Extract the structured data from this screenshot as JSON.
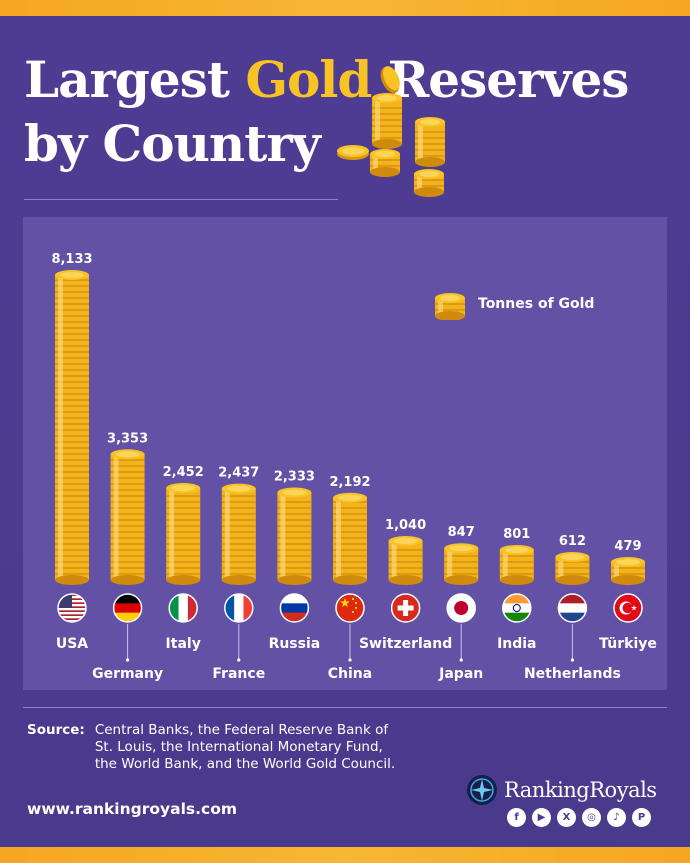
{
  "title": {
    "part1": "Largest ",
    "gold_word": "Gold",
    "part2": " Reserves",
    "line2": "by Country"
  },
  "colors": {
    "background": "#4b3a8f",
    "panel": "#6351a6",
    "accent_gold": "#f7c325",
    "stripe": "#f5a623"
  },
  "chart_data": {
    "type": "bar",
    "categories": [
      "USA",
      "Germany",
      "Italy",
      "France",
      "Russia",
      "China",
      "Switzerland",
      "Japan",
      "India",
      "Netherlands",
      "Türkiye"
    ],
    "values": [
      8133,
      3353,
      2452,
      2437,
      2333,
      2192,
      1040,
      847,
      801,
      612,
      479
    ],
    "value_labels": [
      "8,133",
      "3,353",
      "2,452",
      "2,437",
      "2,333",
      "2,192",
      "1,040",
      "847",
      "801",
      "612",
      "479"
    ],
    "flags": [
      "us-flag",
      "germany-flag",
      "italy-flag",
      "france-flag",
      "russia-flag",
      "china-flag",
      "switzerland-flag",
      "japan-flag",
      "india-flag",
      "netherlands-flag",
      "turkiye-flag"
    ],
    "ylim": [
      0,
      8133
    ],
    "legend": "Tonnes of Gold",
    "legend_position": "top-right",
    "grid": false
  },
  "legend": {
    "label": "Tonnes of Gold"
  },
  "source": {
    "label": "Source:",
    "text": "Central Banks,  the Federal Reserve Bank of St. Louis, the International Monetary Fund, the World Bank, and the World Gold Council."
  },
  "website": "www.rankingroyals.com",
  "brand": {
    "name": "RankingRoyals"
  },
  "socials": [
    "facebook-icon",
    "youtube-icon",
    "x-icon",
    "instagram-icon",
    "tiktok-icon",
    "pinterest-icon"
  ]
}
